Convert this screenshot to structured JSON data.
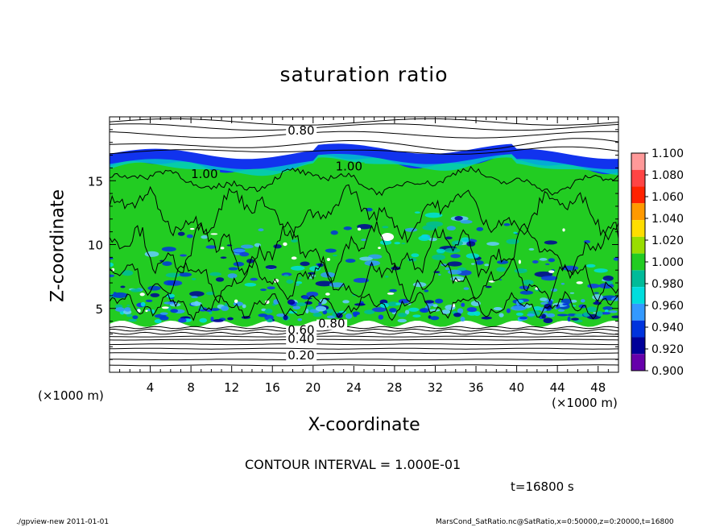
{
  "chart_data": {
    "type": "heatmap",
    "title": "saturation ratio",
    "xlabel": "X-coordinate",
    "ylabel": "Z-coordinate",
    "x_unit": "(×1000 m)",
    "z_unit": "(×1000 m)",
    "xlim": [
      0,
      50
    ],
    "zlim": [
      0,
      20
    ],
    "x_ticks": [
      "4",
      "8",
      "12",
      "16",
      "20",
      "24",
      "28",
      "32",
      "36",
      "40",
      "44",
      "48"
    ],
    "z_ticks": [
      "5",
      "10",
      "15"
    ],
    "contour_labels": [
      {
        "text": "0.80",
        "x": 17.5,
        "z": 18.6
      },
      {
        "text": "1.00",
        "x": 8.0,
        "z": 15.2
      },
      {
        "text": "1.00",
        "x": 22.2,
        "z": 15.8
      },
      {
        "text": "0.80",
        "x": 20.5,
        "z": 3.5
      },
      {
        "text": "0.60",
        "x": 17.5,
        "z": 3.0
      },
      {
        "text": "0.40",
        "x": 17.5,
        "z": 2.3
      },
      {
        "text": "0.20",
        "x": 17.5,
        "z": 1.0
      }
    ],
    "colorbar": {
      "levels": [
        "1.100",
        "1.080",
        "1.060",
        "1.040",
        "1.020",
        "1.000",
        "0.980",
        "0.960",
        "0.940",
        "0.920",
        "0.900"
      ],
      "colors": [
        "#ff9999",
        "#ff4444",
        "#ff2200",
        "#ff9900",
        "#ffdd00",
        "#99dd00",
        "#22cc22",
        "#00bb99",
        "#00dddd",
        "#3399ff",
        "#0033dd",
        "#000099",
        "#6600aa"
      ]
    },
    "contour_interval": "CONTOUR INTERVAL = 1.000E-01",
    "time": "t=16800 s"
  },
  "footer": {
    "left": "./gpview-new   2011-01-01",
    "right": "MarsCond_SatRatio.nc@SatRatio,x=0:50000,z=0:20000,t=16800"
  },
  "colors": {
    "saturated_green": "#22cc22",
    "subsaturated_blue": "#1133ee",
    "background": "#ffffff"
  }
}
